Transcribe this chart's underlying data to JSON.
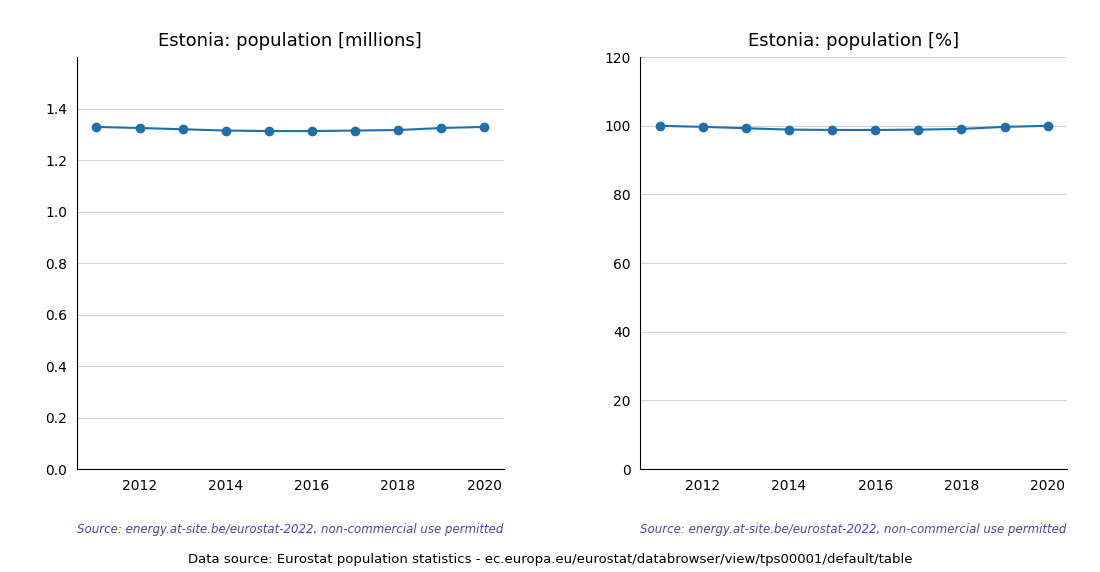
{
  "years": [
    2011,
    2012,
    2013,
    2014,
    2015,
    2016,
    2017,
    2018,
    2019,
    2020
  ],
  "pop_millions": [
    1.329,
    1.325,
    1.32,
    1.315,
    1.313,
    1.313,
    1.315,
    1.317,
    1.325,
    1.329
  ],
  "pop_percent": [
    100.0,
    99.7,
    99.3,
    98.9,
    98.8,
    98.8,
    98.9,
    99.1,
    99.7,
    100.0
  ],
  "title_millions": "Estonia: population [millions]",
  "title_percent": "Estonia: population [%]",
  "source_text": "Source: energy.at-site.be/eurostat-2022, non-commercial use permitted",
  "bottom_text": "Data source: Eurostat population statistics - ec.europa.eu/eurostat/databrowser/view/tps00001/default/table",
  "line_color": "#1f6fab",
  "source_color": "#4444cc",
  "ylim_millions": [
    0.0,
    1.6
  ],
  "yticks_millions": [
    0.0,
    0.2,
    0.4,
    0.6,
    0.8,
    1.0,
    1.2,
    1.4
  ],
  "ylim_percent": [
    0,
    120
  ],
  "yticks_percent": [
    0,
    20,
    40,
    60,
    80,
    100,
    120
  ],
  "xticks": [
    2011,
    2012,
    2013,
    2014,
    2015,
    2016,
    2017,
    2018,
    2019,
    2020
  ],
  "xtick_labels": [
    "",
    "2012",
    "",
    "2014",
    "",
    "2016",
    "",
    "2018",
    "",
    "2020"
  ],
  "marker_size": 6,
  "line_width": 1.5
}
